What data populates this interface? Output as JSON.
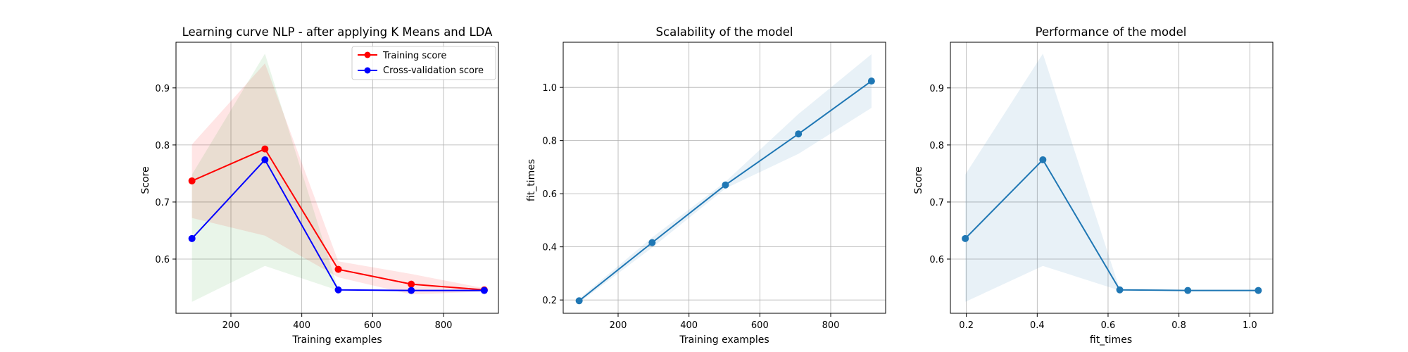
{
  "chart_data": [
    {
      "type": "line",
      "title": "Learning curve NLP - after applying K Means and LDA",
      "xlabel": "Training examples",
      "ylabel": "Score",
      "xlim": [
        45,
        955
      ],
      "ylim": [
        0.505,
        0.98
      ],
      "xticks": [
        200,
        400,
        600,
        800
      ],
      "yticks": [
        0.6,
        0.7,
        0.8,
        0.9
      ],
      "grid": true,
      "legend": "top-right",
      "series": [
        {
          "name": "Training score",
          "color": "#ff0000",
          "x": [
            90,
            296,
            503,
            709,
            915
          ],
          "y": [
            0.737,
            0.793,
            0.582,
            0.556,
            0.546
          ],
          "band_upper": [
            0.801,
            0.943,
            0.596,
            0.574,
            0.549
          ],
          "band_lower": [
            0.672,
            0.641,
            0.568,
            0.538,
            0.543
          ],
          "band_color": "#ff0000"
        },
        {
          "name": "Cross-validation score",
          "color": "#0000ff",
          "x": [
            90,
            296,
            503,
            709,
            915
          ],
          "y": [
            0.636,
            0.774,
            0.546,
            0.545,
            0.545
          ],
          "band_upper": [
            0.748,
            0.96,
            0.547,
            0.546,
            0.546
          ],
          "band_lower": [
            0.525,
            0.588,
            0.545,
            0.544,
            0.544
          ],
          "band_color": "#2ca02c"
        }
      ]
    },
    {
      "type": "line",
      "title": "Scalability of the model",
      "xlabel": "Training examples",
      "ylabel": "fit_times",
      "xlim": [
        45,
        955
      ],
      "ylim": [
        0.15,
        1.17
      ],
      "xticks": [
        200,
        400,
        600,
        800
      ],
      "yticks": [
        0.2,
        0.4,
        0.6,
        0.8,
        1.0
      ],
      "grid": true,
      "series": [
        {
          "color": "#1f77b4",
          "x": [
            90,
            296,
            503,
            709,
            915
          ],
          "y": [
            0.197,
            0.416,
            0.633,
            0.825,
            1.024
          ],
          "band_upper": [
            0.205,
            0.435,
            0.645,
            0.9,
            1.125
          ],
          "band_lower": [
            0.19,
            0.397,
            0.62,
            0.75,
            0.923
          ],
          "band_color": "#1f77b4"
        }
      ]
    },
    {
      "type": "line",
      "title": "Performance of the model",
      "xlabel": "fit_times",
      "ylabel": "Score",
      "xlim": [
        0.155,
        1.065
      ],
      "ylim": [
        0.505,
        0.98
      ],
      "xticks": [
        0.2,
        0.4,
        0.6,
        0.8,
        1.0
      ],
      "yticks": [
        0.6,
        0.7,
        0.8,
        0.9
      ],
      "grid": true,
      "series": [
        {
          "color": "#1f77b4",
          "x": [
            0.197,
            0.416,
            0.633,
            0.825,
            1.024
          ],
          "y": [
            0.636,
            0.774,
            0.546,
            0.545,
            0.545
          ],
          "band_upper": [
            0.748,
            0.96,
            0.547,
            0.546,
            0.546
          ],
          "band_lower": [
            0.525,
            0.588,
            0.545,
            0.544,
            0.544
          ],
          "band_color": "#1f77b4"
        }
      ]
    }
  ]
}
